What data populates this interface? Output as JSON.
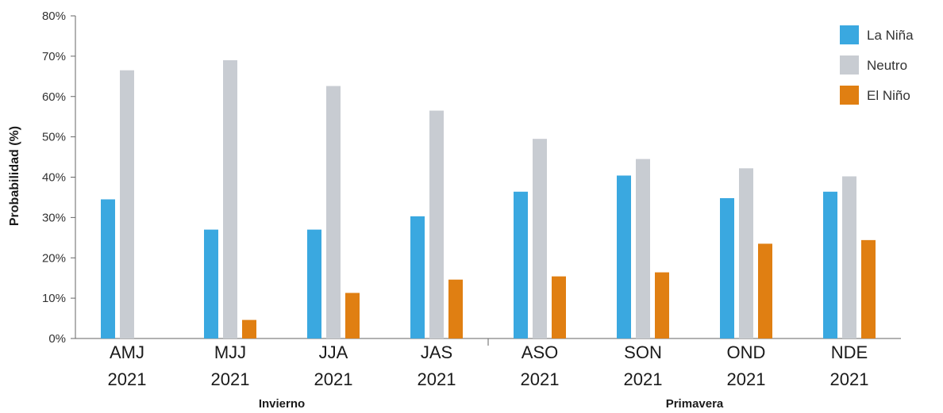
{
  "chart_data": {
    "type": "bar",
    "title": "",
    "xlabel": "",
    "ylabel": "Probabilidad (%)",
    "ylim": [
      0,
      80
    ],
    "yticks": [
      "0%",
      "10%",
      "20%",
      "30%",
      "40%",
      "50%",
      "60%",
      "70%",
      "80%"
    ],
    "categories": [
      {
        "line1": "AMJ",
        "line2": "2021"
      },
      {
        "line1": "MJJ",
        "line2": "2021"
      },
      {
        "line1": "JJA",
        "line2": "2021"
      },
      {
        "line1": "JAS",
        "line2": "2021"
      },
      {
        "line1": "ASO",
        "line2": "2021"
      },
      {
        "line1": "SON",
        "line2": "2021"
      },
      {
        "line1": "OND",
        "line2": "2021"
      },
      {
        "line1": "NDE",
        "line2": "2021"
      }
    ],
    "groups": [
      {
        "label": "Invierno",
        "categories": [
          0,
          3
        ]
      },
      {
        "label": "Primavera",
        "categories": [
          4,
          7
        ]
      }
    ],
    "series": [
      {
        "name": "La Niña",
        "color": "#3aa8e0",
        "values": [
          34.5,
          27,
          27,
          30.3,
          36.4,
          40.4,
          34.8,
          36.4
        ]
      },
      {
        "name": "Neutro",
        "color": "#c8ccd2",
        "values": [
          66.5,
          69,
          62.6,
          56.5,
          49.5,
          44.5,
          42.2,
          40.2
        ]
      },
      {
        "name": "El Niño",
        "color": "#e07f12",
        "values": [
          0,
          4.6,
          11.3,
          14.6,
          15.4,
          16.4,
          23.5,
          24.4
        ]
      }
    ],
    "legend": "top-right",
    "grid": false
  }
}
